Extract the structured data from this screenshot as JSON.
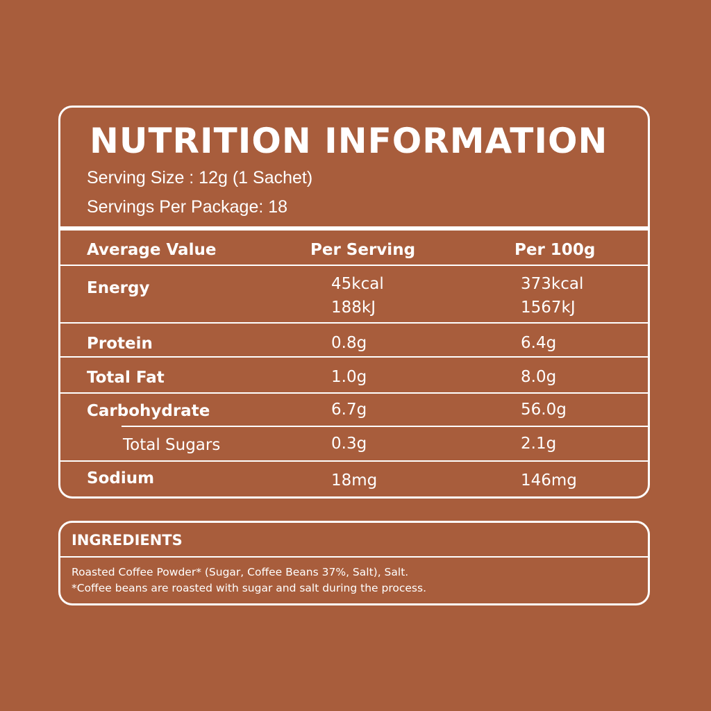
{
  "nutrition": {
    "title": "NUTRITION INFORMATION",
    "serving_size": "Serving Size : 12g (1 Sachet)",
    "servings_per_package": "Servings Per Package: 18",
    "headers": {
      "average_value": "Average Value",
      "per_serving": "Per Serving",
      "per_100g": "Per 100g"
    },
    "rows": [
      {
        "label": "Energy",
        "per_serving": [
          "45kcal",
          "188kJ"
        ],
        "per_100g": [
          "373kcal",
          "1567kJ"
        ]
      },
      {
        "label": "Protein",
        "per_serving": [
          "0.8g"
        ],
        "per_100g": [
          "6.4g"
        ]
      },
      {
        "label": "Total Fat",
        "per_serving": [
          "1.0g"
        ],
        "per_100g": [
          "8.0g"
        ]
      },
      {
        "label": "Carbohydrate",
        "per_serving": [
          "6.7g"
        ],
        "per_100g": [
          "56.0g"
        ]
      },
      {
        "label": "Total Sugars",
        "per_serving": [
          "0.3g"
        ],
        "per_100g": [
          "2.1g"
        ]
      },
      {
        "label": "Sodium",
        "per_serving": [
          "18mg"
        ],
        "per_100g": [
          "146mg"
        ]
      }
    ]
  },
  "ingredients": {
    "title": "INGREDIENTS",
    "line1": "Roasted Coffee Powder* (Sugar, Coffee Beans 37%, Salt), Salt.",
    "line2": "*Coffee beans are roasted with sugar and salt during the process."
  },
  "colors": {
    "background": "#a85d3c",
    "foreground": "#ffffff"
  }
}
